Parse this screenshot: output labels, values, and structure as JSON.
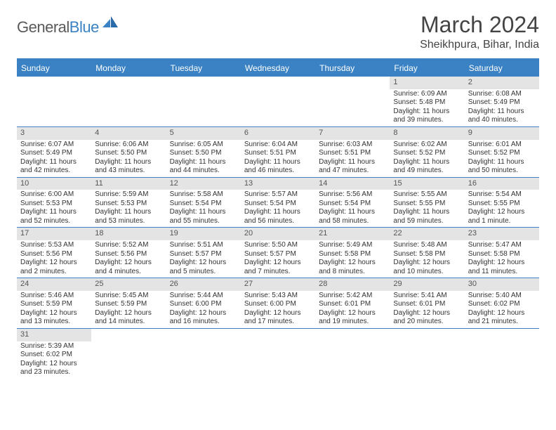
{
  "logo": {
    "text1": "General",
    "text2": "Blue"
  },
  "title": "March 2024",
  "location": "Sheikhpura, Bihar, India",
  "colors": {
    "brand_blue": "#3a82c4",
    "header_text": "#ffffff",
    "daynum_bg": "#e4e4e4",
    "body_text": "#333333"
  },
  "day_headers": [
    "Sunday",
    "Monday",
    "Tuesday",
    "Wednesday",
    "Thursday",
    "Friday",
    "Saturday"
  ],
  "weeks": [
    [
      null,
      null,
      null,
      null,
      null,
      {
        "n": "1",
        "sr": "Sunrise: 6:09 AM",
        "ss": "Sunset: 5:48 PM",
        "d1": "Daylight: 11 hours",
        "d2": "and 39 minutes."
      },
      {
        "n": "2",
        "sr": "Sunrise: 6:08 AM",
        "ss": "Sunset: 5:49 PM",
        "d1": "Daylight: 11 hours",
        "d2": "and 40 minutes."
      }
    ],
    [
      {
        "n": "3",
        "sr": "Sunrise: 6:07 AM",
        "ss": "Sunset: 5:49 PM",
        "d1": "Daylight: 11 hours",
        "d2": "and 42 minutes."
      },
      {
        "n": "4",
        "sr": "Sunrise: 6:06 AM",
        "ss": "Sunset: 5:50 PM",
        "d1": "Daylight: 11 hours",
        "d2": "and 43 minutes."
      },
      {
        "n": "5",
        "sr": "Sunrise: 6:05 AM",
        "ss": "Sunset: 5:50 PM",
        "d1": "Daylight: 11 hours",
        "d2": "and 44 minutes."
      },
      {
        "n": "6",
        "sr": "Sunrise: 6:04 AM",
        "ss": "Sunset: 5:51 PM",
        "d1": "Daylight: 11 hours",
        "d2": "and 46 minutes."
      },
      {
        "n": "7",
        "sr": "Sunrise: 6:03 AM",
        "ss": "Sunset: 5:51 PM",
        "d1": "Daylight: 11 hours",
        "d2": "and 47 minutes."
      },
      {
        "n": "8",
        "sr": "Sunrise: 6:02 AM",
        "ss": "Sunset: 5:52 PM",
        "d1": "Daylight: 11 hours",
        "d2": "and 49 minutes."
      },
      {
        "n": "9",
        "sr": "Sunrise: 6:01 AM",
        "ss": "Sunset: 5:52 PM",
        "d1": "Daylight: 11 hours",
        "d2": "and 50 minutes."
      }
    ],
    [
      {
        "n": "10",
        "sr": "Sunrise: 6:00 AM",
        "ss": "Sunset: 5:53 PM",
        "d1": "Daylight: 11 hours",
        "d2": "and 52 minutes."
      },
      {
        "n": "11",
        "sr": "Sunrise: 5:59 AM",
        "ss": "Sunset: 5:53 PM",
        "d1": "Daylight: 11 hours",
        "d2": "and 53 minutes."
      },
      {
        "n": "12",
        "sr": "Sunrise: 5:58 AM",
        "ss": "Sunset: 5:54 PM",
        "d1": "Daylight: 11 hours",
        "d2": "and 55 minutes."
      },
      {
        "n": "13",
        "sr": "Sunrise: 5:57 AM",
        "ss": "Sunset: 5:54 PM",
        "d1": "Daylight: 11 hours",
        "d2": "and 56 minutes."
      },
      {
        "n": "14",
        "sr": "Sunrise: 5:56 AM",
        "ss": "Sunset: 5:54 PM",
        "d1": "Daylight: 11 hours",
        "d2": "and 58 minutes."
      },
      {
        "n": "15",
        "sr": "Sunrise: 5:55 AM",
        "ss": "Sunset: 5:55 PM",
        "d1": "Daylight: 11 hours",
        "d2": "and 59 minutes."
      },
      {
        "n": "16",
        "sr": "Sunrise: 5:54 AM",
        "ss": "Sunset: 5:55 PM",
        "d1": "Daylight: 12 hours",
        "d2": "and 1 minute."
      }
    ],
    [
      {
        "n": "17",
        "sr": "Sunrise: 5:53 AM",
        "ss": "Sunset: 5:56 PM",
        "d1": "Daylight: 12 hours",
        "d2": "and 2 minutes."
      },
      {
        "n": "18",
        "sr": "Sunrise: 5:52 AM",
        "ss": "Sunset: 5:56 PM",
        "d1": "Daylight: 12 hours",
        "d2": "and 4 minutes."
      },
      {
        "n": "19",
        "sr": "Sunrise: 5:51 AM",
        "ss": "Sunset: 5:57 PM",
        "d1": "Daylight: 12 hours",
        "d2": "and 5 minutes."
      },
      {
        "n": "20",
        "sr": "Sunrise: 5:50 AM",
        "ss": "Sunset: 5:57 PM",
        "d1": "Daylight: 12 hours",
        "d2": "and 7 minutes."
      },
      {
        "n": "21",
        "sr": "Sunrise: 5:49 AM",
        "ss": "Sunset: 5:58 PM",
        "d1": "Daylight: 12 hours",
        "d2": "and 8 minutes."
      },
      {
        "n": "22",
        "sr": "Sunrise: 5:48 AM",
        "ss": "Sunset: 5:58 PM",
        "d1": "Daylight: 12 hours",
        "d2": "and 10 minutes."
      },
      {
        "n": "23",
        "sr": "Sunrise: 5:47 AM",
        "ss": "Sunset: 5:58 PM",
        "d1": "Daylight: 12 hours",
        "d2": "and 11 minutes."
      }
    ],
    [
      {
        "n": "24",
        "sr": "Sunrise: 5:46 AM",
        "ss": "Sunset: 5:59 PM",
        "d1": "Daylight: 12 hours",
        "d2": "and 13 minutes."
      },
      {
        "n": "25",
        "sr": "Sunrise: 5:45 AM",
        "ss": "Sunset: 5:59 PM",
        "d1": "Daylight: 12 hours",
        "d2": "and 14 minutes."
      },
      {
        "n": "26",
        "sr": "Sunrise: 5:44 AM",
        "ss": "Sunset: 6:00 PM",
        "d1": "Daylight: 12 hours",
        "d2": "and 16 minutes."
      },
      {
        "n": "27",
        "sr": "Sunrise: 5:43 AM",
        "ss": "Sunset: 6:00 PM",
        "d1": "Daylight: 12 hours",
        "d2": "and 17 minutes."
      },
      {
        "n": "28",
        "sr": "Sunrise: 5:42 AM",
        "ss": "Sunset: 6:01 PM",
        "d1": "Daylight: 12 hours",
        "d2": "and 19 minutes."
      },
      {
        "n": "29",
        "sr": "Sunrise: 5:41 AM",
        "ss": "Sunset: 6:01 PM",
        "d1": "Daylight: 12 hours",
        "d2": "and 20 minutes."
      },
      {
        "n": "30",
        "sr": "Sunrise: 5:40 AM",
        "ss": "Sunset: 6:02 PM",
        "d1": "Daylight: 12 hours",
        "d2": "and 21 minutes."
      }
    ],
    [
      {
        "n": "31",
        "sr": "Sunrise: 5:39 AM",
        "ss": "Sunset: 6:02 PM",
        "d1": "Daylight: 12 hours",
        "d2": "and 23 minutes."
      },
      null,
      null,
      null,
      null,
      null,
      null
    ]
  ]
}
